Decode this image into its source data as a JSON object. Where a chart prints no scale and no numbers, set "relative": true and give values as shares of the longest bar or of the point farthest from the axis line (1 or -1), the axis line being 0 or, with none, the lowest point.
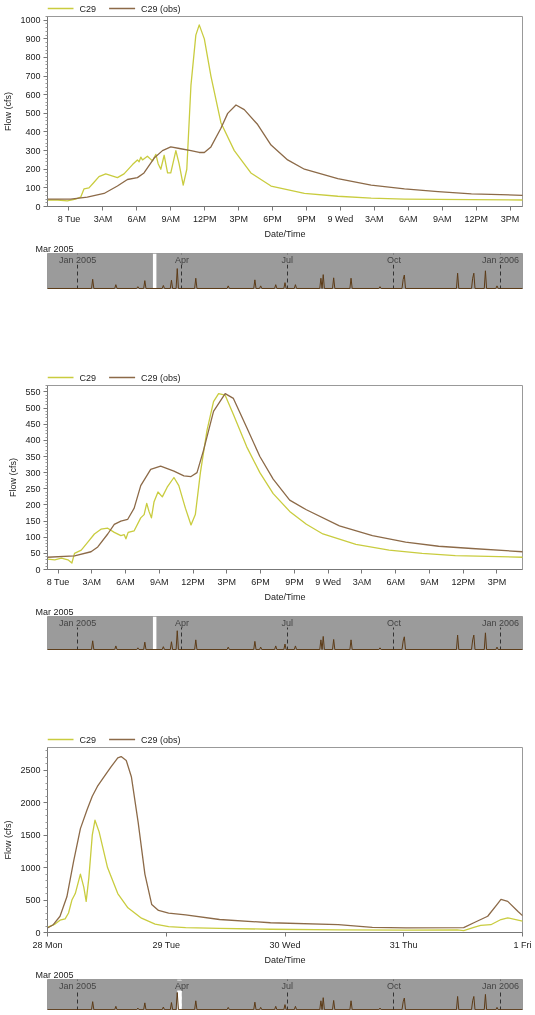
{
  "chart_data": [
    {
      "type": "line",
      "xlabel": "Date/Time",
      "ylabel": "Flow (cfs)",
      "annotations": [
        "Mar 2005"
      ],
      "legend": "top left",
      "grid": false,
      "xlim": [
        "2005-03-07T22:06",
        "2005-03-09T16:06"
      ],
      "ylim": [
        0,
        1020
      ],
      "yticks": [
        0,
        100,
        200,
        300,
        400,
        500,
        600,
        700,
        800,
        900,
        1000
      ],
      "xticks": [
        {
          "value": "2005-03-08T00:00",
          "label": "8 Tue"
        },
        {
          "value": "2005-03-08T03:00",
          "label": "3AM"
        },
        {
          "value": "2005-03-08T06:00",
          "label": "6AM"
        },
        {
          "value": "2005-03-08T09:00",
          "label": "9AM"
        },
        {
          "value": "2005-03-08T12:00",
          "label": "12PM"
        },
        {
          "value": "2005-03-08T15:00",
          "label": "3PM"
        },
        {
          "value": "2005-03-08T18:00",
          "label": "6PM"
        },
        {
          "value": "2005-03-08T21:00",
          "label": "9PM"
        },
        {
          "value": "2005-03-09T00:00",
          "label": "9 Wed"
        },
        {
          "value": "2005-03-09T03:00",
          "label": "3AM"
        },
        {
          "value": "2005-03-09T06:00",
          "label": "6AM"
        },
        {
          "value": "2005-03-09T09:00",
          "label": "9AM"
        },
        {
          "value": "2005-03-09T12:00",
          "label": "12PM"
        },
        {
          "value": "2005-03-09T15:00",
          "label": "3PM"
        }
      ],
      "series": [
        {
          "name": "C29",
          "color": "#c9cc3f",
          "x": [
            "2005-03-07T22:06",
            "2005-03-07T23:00",
            "2005-03-07T23:51",
            "2005-03-08T00:35",
            "2005-03-08T01:02",
            "2005-03-08T01:20",
            "2005-03-08T01:46",
            "2005-03-08T02:13",
            "2005-03-08T02:39",
            "2005-03-08T03:15",
            "2005-03-08T04:17",
            "2005-03-08T04:52",
            "2005-03-08T05:37",
            "2005-03-08T06:03",
            "2005-03-08T06:12",
            "2005-03-08T06:21",
            "2005-03-08T06:30",
            "2005-03-08T06:56",
            "2005-03-08T07:23",
            "2005-03-08T07:41",
            "2005-03-08T07:53",
            "2005-03-08T08:07",
            "2005-03-08T08:25",
            "2005-03-08T08:43",
            "2005-03-08T09:00",
            "2005-03-08T09:27",
            "2005-03-08T09:44",
            "2005-03-08T10:06",
            "2005-03-08T10:25",
            "2005-03-08T10:47",
            "2005-03-08T11:13",
            "2005-03-08T11:31",
            "2005-03-08T11:58",
            "2005-03-08T12:33",
            "2005-03-08T13:26",
            "2005-03-08T14:37",
            "2005-03-08T16:05",
            "2005-03-08T17:52",
            "2005-03-08T20:49",
            "2005-03-08T23:46",
            "2005-03-09T02:43",
            "2005-03-09T05:40",
            "2005-03-09T11:35",
            "2005-03-09T16:06"
          ],
          "values": [
            35,
            35,
            30,
            40,
            50,
            95,
            100,
            130,
            160,
            175,
            155,
            175,
            225,
            250,
            240,
            265,
            250,
            270,
            245,
            280,
            230,
            200,
            275,
            180,
            180,
            300,
            230,
            115,
            200,
            650,
            920,
            975,
            900,
            700,
            450,
            300,
            180,
            110,
            70,
            55,
            45,
            40,
            37,
            35
          ]
        },
        {
          "name": "C29 (obs)",
          "color": "#8c6a48",
          "x": [
            "2005-03-07T22:06",
            "2005-03-08T00:09",
            "2005-03-08T01:37",
            "2005-03-08T03:06",
            "2005-03-08T04:17",
            "2005-03-08T05:10",
            "2005-03-08T06:03",
            "2005-03-08T06:38",
            "2005-03-08T07:32",
            "2005-03-08T08:16",
            "2005-03-08T09:00",
            "2005-03-08T09:53",
            "2005-03-08T10:47",
            "2005-03-08T11:31",
            "2005-03-08T11:58",
            "2005-03-08T12:33",
            "2005-03-08T13:26",
            "2005-03-08T14:02",
            "2005-03-08T14:46",
            "2005-03-08T15:30",
            "2005-03-08T16:41",
            "2005-03-08T17:52",
            "2005-03-08T19:20",
            "2005-03-08T20:49",
            "2005-03-08T23:46",
            "2005-03-09T02:43",
            "2005-03-09T05:40",
            "2005-03-09T08:38",
            "2005-03-09T11:35",
            "2005-03-09T16:06"
          ],
          "values": [
            40,
            40,
            50,
            70,
            110,
            145,
            155,
            180,
            260,
            300,
            320,
            310,
            300,
            290,
            290,
            320,
            420,
            500,
            545,
            520,
            440,
            330,
            250,
            200,
            150,
            115,
            95,
            80,
            68,
            60
          ]
        }
      ]
    },
    {
      "type": "line",
      "relative": true,
      "tick_labels": "x",
      "grid": "x",
      "xlim": [
        "2004-12-06",
        "2006-01-20"
      ],
      "xticks": [
        {
          "value": "2005-01-01",
          "label": "Jan 2005"
        },
        {
          "value": "2005-04-01",
          "label": "Apr"
        },
        {
          "value": "2005-07-01",
          "label": "Jul"
        },
        {
          "value": "2005-10-01",
          "label": "Oct"
        },
        {
          "value": "2006-01-01",
          "label": "Jan 2006"
        }
      ],
      "bands": [
        {
          "axis": "x",
          "from": "2005-03-07",
          "to": "2005-03-10",
          "color": "#ffffff"
        }
      ],
      "series": [
        {
          "color": "#5c3b17",
          "x": [
            "2004-12-06",
            "2005-01-13",
            "2005-01-14",
            "2005-01-15",
            "2005-02-02",
            "2005-02-03",
            "2005-02-04",
            "2005-02-21",
            "2005-02-22",
            "2005-02-23",
            "2005-02-27",
            "2005-02-28",
            "2005-03-01",
            "2005-03-15",
            "2005-03-16",
            "2005-03-17",
            "2005-03-22",
            "2005-03-23",
            "2005-03-24",
            "2005-03-27",
            "2005-03-28",
            "2005-03-29",
            "2005-04-12",
            "2005-04-13",
            "2005-04-14",
            "2005-05-10",
            "2005-05-11",
            "2005-05-12",
            "2005-06-02",
            "2005-06-03",
            "2005-06-04",
            "2005-06-07",
            "2005-06-08",
            "2005-06-09",
            "2005-06-20",
            "2005-06-21",
            "2005-06-22",
            "2005-06-28",
            "2005-06-29",
            "2005-06-30",
            "2005-07-07",
            "2005-07-08",
            "2005-07-09",
            "2005-07-29",
            "2005-07-30",
            "2005-07-31",
            "2005-08-01",
            "2005-08-02",
            "2005-08-09",
            "2005-08-10",
            "2005-08-11",
            "2005-08-24",
            "2005-08-25",
            "2005-08-26",
            "2005-09-18",
            "2005-09-19",
            "2005-09-20",
            "2005-10-08",
            "2005-10-09",
            "2005-10-10",
            "2005-10-11",
            "2005-11-24",
            "2005-11-25",
            "2005-11-26",
            "2005-12-07",
            "2005-12-08",
            "2005-12-09",
            "2005-12-10",
            "2005-12-18",
            "2005-12-19",
            "2005-12-20",
            "2005-12-28",
            "2005-12-29",
            "2005-12-30",
            "2006-01-20"
          ],
          "values": [
            0.01,
            0.01,
            0.47,
            0.01,
            0.01,
            0.2,
            0.01,
            0.01,
            0.1,
            0.01,
            0.01,
            0.4,
            0.01,
            0.01,
            0.16,
            0.01,
            0.01,
            0.42,
            0.01,
            0.01,
            1,
            0.01,
            0.01,
            0.52,
            0.01,
            0.01,
            0.14,
            0.01,
            0.01,
            0.44,
            0.01,
            0.01,
            0.14,
            0.01,
            0.01,
            0.2,
            0.01,
            0.01,
            0.3,
            0.01,
            0.01,
            0.2,
            0.01,
            0.01,
            0.52,
            0.01,
            0.7,
            0.01,
            0.01,
            0.54,
            0.01,
            0.01,
            0.52,
            0.01,
            0.01,
            0.1,
            0.01,
            0.01,
            0.46,
            0.68,
            0.01,
            0.01,
            0.77,
            0.01,
            0.01,
            0.52,
            0.77,
            0.01,
            0.01,
            0.89,
            0.01,
            0.01,
            0.14,
            0.01,
            0.01
          ]
        }
      ]
    },
    {
      "type": "line",
      "xlabel": "Date/Time",
      "ylabel": "Flow (cfs)",
      "annotations": [
        "Mar 2005"
      ],
      "legend": "top left",
      "grid": false,
      "xlim": [
        "2005-03-07T23:04",
        "2005-03-09T17:16"
      ],
      "ylim": [
        0,
        570
      ],
      "yticks": [
        0,
        50,
        100,
        150,
        200,
        250,
        300,
        350,
        400,
        450,
        500,
        550
      ],
      "xticks": [
        {
          "value": "2005-03-08T00:00",
          "label": "8 Tue"
        },
        {
          "value": "2005-03-08T03:00",
          "label": "3AM"
        },
        {
          "value": "2005-03-08T06:00",
          "label": "6AM"
        },
        {
          "value": "2005-03-08T09:00",
          "label": "9AM"
        },
        {
          "value": "2005-03-08T12:00",
          "label": "12PM"
        },
        {
          "value": "2005-03-08T15:00",
          "label": "3PM"
        },
        {
          "value": "2005-03-08T18:00",
          "label": "6PM"
        },
        {
          "value": "2005-03-08T21:00",
          "label": "9PM"
        },
        {
          "value": "2005-03-09T00:00",
          "label": "9 Wed"
        },
        {
          "value": "2005-03-09T03:00",
          "label": "3AM"
        },
        {
          "value": "2005-03-09T06:00",
          "label": "6AM"
        },
        {
          "value": "2005-03-09T09:00",
          "label": "9AM"
        },
        {
          "value": "2005-03-09T12:00",
          "label": "12PM"
        },
        {
          "value": "2005-03-09T15:00",
          "label": "3PM"
        }
      ],
      "series": [
        {
          "name": "C29",
          "color": "#c9cc3f",
          "x": [
            "2005-03-07T23:04",
            "2005-03-07T23:43",
            "2005-03-08T00:18",
            "2005-03-08T00:53",
            "2005-03-08T01:14",
            "2005-03-08T01:28",
            "2005-03-08T02:04",
            "2005-03-08T02:39",
            "2005-03-08T03:14",
            "2005-03-08T03:49",
            "2005-03-08T04:25",
            "2005-03-08T05:00",
            "2005-03-08T05:35",
            "2005-03-08T05:53",
            "2005-03-08T06:02",
            "2005-03-08T06:14",
            "2005-03-08T06:46",
            "2005-03-08T07:21",
            "2005-03-08T07:39",
            "2005-03-08T07:53",
            "2005-03-08T08:05",
            "2005-03-08T08:18",
            "2005-03-08T08:32",
            "2005-03-08T08:53",
            "2005-03-08T09:16",
            "2005-03-08T09:42",
            "2005-03-08T10:18",
            "2005-03-08T10:44",
            "2005-03-08T11:19",
            "2005-03-08T11:49",
            "2005-03-08T12:12",
            "2005-03-08T12:39",
            "2005-03-08T13:14",
            "2005-03-08T13:49",
            "2005-03-08T14:16",
            "2005-03-08T14:51",
            "2005-03-08T15:35",
            "2005-03-08T16:46",
            "2005-03-08T17:56",
            "2005-03-08T19:07",
            "2005-03-08T20:35",
            "2005-03-08T22:04",
            "2005-03-08T23:32",
            "2005-03-09T02:28",
            "2005-03-09T05:25",
            "2005-03-09T08:21",
            "2005-03-09T11:18",
            "2005-03-09T17:16"
          ],
          "values": [
            32,
            30,
            35,
            30,
            20,
            50,
            60,
            85,
            110,
            125,
            128,
            115,
            105,
            108,
            95,
            115,
            120,
            160,
            170,
            205,
            180,
            160,
            210,
            240,
            225,
            255,
            285,
            260,
            190,
            138,
            170,
            300,
            430,
            520,
            545,
            540,
            480,
            380,
            300,
            235,
            180,
            140,
            110,
            78,
            60,
            50,
            43,
            38
          ]
        },
        {
          "name": "C29 (obs)",
          "color": "#8c6a48",
          "x": [
            "2005-03-07T23:04",
            "2005-03-08T01:28",
            "2005-03-08T02:56",
            "2005-03-08T03:32",
            "2005-03-08T04:25",
            "2005-03-08T05:00",
            "2005-03-08T05:35",
            "2005-03-08T06:11",
            "2005-03-08T06:46",
            "2005-03-08T07:21",
            "2005-03-08T08:14",
            "2005-03-08T09:07",
            "2005-03-08T10:18",
            "2005-03-08T11:11",
            "2005-03-08T11:49",
            "2005-03-08T12:21",
            "2005-03-08T12:56",
            "2005-03-08T13:49",
            "2005-03-08T14:51",
            "2005-03-08T15:35",
            "2005-03-08T16:46",
            "2005-03-08T17:56",
            "2005-03-08T19:07",
            "2005-03-08T20:35",
            "2005-03-08T22:04",
            "2005-03-09T01:00",
            "2005-03-09T03:56",
            "2005-03-09T06:53",
            "2005-03-09T09:49",
            "2005-03-09T12:46",
            "2005-03-09T17:16"
          ],
          "values": [
            38,
            42,
            55,
            70,
            110,
            140,
            150,
            155,
            190,
            260,
            310,
            320,
            305,
            290,
            288,
            300,
            370,
            490,
            545,
            530,
            440,
            350,
            280,
            215,
            185,
            135,
            105,
            85,
            72,
            65,
            55
          ]
        }
      ]
    },
    {
      "type": "line",
      "relative": true,
      "tick_labels": "x",
      "grid": "x",
      "xlim": [
        "2004-12-06",
        "2006-01-20"
      ],
      "xticks": [
        {
          "value": "2005-01-01",
          "label": "Jan 2005"
        },
        {
          "value": "2005-04-01",
          "label": "Apr"
        },
        {
          "value": "2005-07-01",
          "label": "Jul"
        },
        {
          "value": "2005-10-01",
          "label": "Oct"
        },
        {
          "value": "2006-01-01",
          "label": "Jan 2006"
        }
      ],
      "bands": [
        {
          "axis": "x",
          "from": "2005-03-07",
          "to": "2005-03-10",
          "color": "#ffffff"
        }
      ],
      "series": [
        {
          "color": "#5c3b17",
          "x": [
            "2004-12-06",
            "2005-01-13",
            "2005-01-14",
            "2005-01-15",
            "2005-02-02",
            "2005-02-03",
            "2005-02-04",
            "2005-02-21",
            "2005-02-22",
            "2005-02-23",
            "2005-02-27",
            "2005-02-28",
            "2005-03-01",
            "2005-03-15",
            "2005-03-16",
            "2005-03-17",
            "2005-03-22",
            "2005-03-23",
            "2005-03-24",
            "2005-03-27",
            "2005-03-28",
            "2005-03-29",
            "2005-04-12",
            "2005-04-13",
            "2005-04-14",
            "2005-05-10",
            "2005-05-11",
            "2005-05-12",
            "2005-06-02",
            "2005-06-03",
            "2005-06-04",
            "2005-06-07",
            "2005-06-08",
            "2005-06-09",
            "2005-06-20",
            "2005-06-21",
            "2005-06-22",
            "2005-06-28",
            "2005-06-29",
            "2005-06-30",
            "2005-07-07",
            "2005-07-08",
            "2005-07-09",
            "2005-07-29",
            "2005-07-30",
            "2005-07-31",
            "2005-08-01",
            "2005-08-02",
            "2005-08-09",
            "2005-08-10",
            "2005-08-11",
            "2005-08-24",
            "2005-08-25",
            "2005-08-26",
            "2005-09-18",
            "2005-09-19",
            "2005-09-20",
            "2005-10-08",
            "2005-10-09",
            "2005-10-10",
            "2005-10-11",
            "2005-11-24",
            "2005-11-25",
            "2005-11-26",
            "2005-12-07",
            "2005-12-08",
            "2005-12-09",
            "2005-12-10",
            "2005-12-18",
            "2005-12-19",
            "2005-12-20",
            "2005-12-28",
            "2005-12-29",
            "2005-12-30",
            "2006-01-20"
          ],
          "values": [
            0.01,
            0.01,
            0.47,
            0.01,
            0.01,
            0.2,
            0.01,
            0.01,
            0.1,
            0.01,
            0.01,
            0.4,
            0.01,
            0.01,
            0.16,
            0.01,
            0.01,
            0.42,
            0.01,
            0.01,
            1,
            0.01,
            0.01,
            0.52,
            0.01,
            0.01,
            0.14,
            0.01,
            0.01,
            0.44,
            0.01,
            0.01,
            0.14,
            0.01,
            0.01,
            0.2,
            0.01,
            0.01,
            0.3,
            0.01,
            0.01,
            0.2,
            0.01,
            0.01,
            0.52,
            0.01,
            0.7,
            0.01,
            0.01,
            0.54,
            0.01,
            0.01,
            0.52,
            0.01,
            0.01,
            0.1,
            0.01,
            0.01,
            0.46,
            0.68,
            0.01,
            0.01,
            0.77,
            0.01,
            0.01,
            0.52,
            0.77,
            0.01,
            0.01,
            0.89,
            0.01,
            0.01,
            0.14,
            0.01,
            0.01
          ]
        }
      ]
    },
    {
      "type": "line",
      "xlabel": "Date/Time",
      "ylabel": "Flow (cfs)",
      "annotations": [
        "Mar 2005"
      ],
      "legend": "top left",
      "grid": false,
      "xlim": [
        "2005-03-28T00:00",
        "2005-04-01T00:00"
      ],
      "ylim": [
        0,
        2850
      ],
      "yticks": [
        0,
        500,
        1000,
        1500,
        2000,
        2500
      ],
      "xticks": [
        {
          "value": "2005-03-28T00:00",
          "label": "28 Mon"
        },
        {
          "value": "2005-03-29T00:00",
          "label": "29 Tue"
        },
        {
          "value": "2005-03-30T00:00",
          "label": "30 Wed"
        },
        {
          "value": "2005-03-31T00:00",
          "label": "31 Thu"
        },
        {
          "value": "2005-04-01T00:00",
          "label": "1 Fri"
        }
      ],
      "series": [
        {
          "name": "C29",
          "color": "#c9cc3f",
          "x": [
            "2005-03-28T00:00",
            "2005-03-28T01:31",
            "2005-03-28T02:32",
            "2005-03-28T03:34",
            "2005-03-28T04:15",
            "2005-03-28T04:56",
            "2005-03-28T05:37",
            "2005-03-28T06:39",
            "2005-03-28T07:20",
            "2005-03-28T07:49",
            "2005-03-28T08:22",
            "2005-03-28T09:03",
            "2005-03-28T09:36",
            "2005-03-28T10:26",
            "2005-03-28T12:08",
            "2005-03-28T14:12",
            "2005-03-28T16:15",
            "2005-03-28T19:00",
            "2005-03-28T21:45",
            "2005-03-29T00:29",
            "2005-03-29T03:55",
            "2005-03-29T10:46",
            "2005-03-29T21:04",
            "2005-03-30T10:46",
            "2005-03-31T00:28",
            "2005-03-31T10:48",
            "2005-03-31T12:07",
            "2005-03-31T14:10",
            "2005-03-31T15:33",
            "2005-03-31T17:36",
            "2005-03-31T19:39",
            "2005-03-31T21:01",
            "2005-04-01T00:00"
          ],
          "values": [
            80,
            130,
            190,
            210,
            300,
            500,
            600,
            900,
            700,
            480,
            850,
            1500,
            1730,
            1550,
            1000,
            600,
            380,
            220,
            130,
            90,
            75,
            65,
            50,
            40,
            38,
            40,
            30,
            80,
            110,
            120,
            200,
            225,
            175
          ]
        },
        {
          "name": "C29 (obs)",
          "color": "#8c6a48",
          "x": [
            "2005-03-28T00:00",
            "2005-03-28T01:10",
            "2005-03-28T02:32",
            "2005-03-28T03:55",
            "2005-03-28T05:17",
            "2005-03-28T06:39",
            "2005-03-28T08:02",
            "2005-03-28T09:03",
            "2005-03-28T10:05",
            "2005-03-28T11:27",
            "2005-03-28T12:50",
            "2005-03-28T14:12",
            "2005-03-28T14:53",
            "2005-03-28T15:55",
            "2005-03-28T16:57",
            "2005-03-28T18:19",
            "2005-03-28T19:41",
            "2005-03-28T21:04",
            "2005-03-28T22:26",
            "2005-03-29T00:29",
            "2005-03-29T03:55",
            "2005-03-29T10:46",
            "2005-03-29T21:04",
            "2005-03-30T10:46",
            "2005-03-30T17:39",
            "2005-03-31T00:28",
            "2005-03-31T12:07",
            "2005-03-31T14:10",
            "2005-03-31T16:58",
            "2005-03-31T19:02",
            "2005-03-31T19:39",
            "2005-03-31T21:01",
            "2005-03-31T23:09",
            "2005-04-01T00:00"
          ],
          "values": [
            70,
            120,
            250,
            550,
            1100,
            1600,
            1900,
            2100,
            2250,
            2400,
            2550,
            2690,
            2710,
            2650,
            2400,
            1700,
            900,
            430,
            340,
            300,
            270,
            200,
            150,
            120,
            80,
            70,
            75,
            150,
            250,
            450,
            510,
            480,
            320,
            260
          ]
        }
      ]
    },
    {
      "type": "line",
      "relative": true,
      "tick_labels": "x",
      "grid": "x",
      "xlim": [
        "2004-12-06",
        "2006-01-20"
      ],
      "xticks": [
        {
          "value": "2005-01-01",
          "label": "Jan 2005"
        },
        {
          "value": "2005-04-01",
          "label": "Apr"
        },
        {
          "value": "2005-07-01",
          "label": "Jul"
        },
        {
          "value": "2005-10-01",
          "label": "Oct"
        },
        {
          "value": "2006-01-01",
          "label": "Jan 2006"
        }
      ],
      "bands": [
        {
          "axis": "x",
          "from": "2005-03-28",
          "to": "2005-04-01",
          "color": "#ffffff"
        }
      ],
      "series": [
        {
          "color": "#5c3b17",
          "x": [
            "2004-12-06",
            "2005-01-13",
            "2005-01-14",
            "2005-01-15",
            "2005-02-02",
            "2005-02-03",
            "2005-02-04",
            "2005-02-21",
            "2005-02-22",
            "2005-02-23",
            "2005-02-27",
            "2005-02-28",
            "2005-03-01",
            "2005-03-15",
            "2005-03-16",
            "2005-03-17",
            "2005-03-22",
            "2005-03-23",
            "2005-03-24",
            "2005-03-27",
            "2005-03-28",
            "2005-03-29",
            "2005-04-12",
            "2005-04-13",
            "2005-04-14",
            "2005-05-10",
            "2005-05-11",
            "2005-05-12",
            "2005-06-02",
            "2005-06-03",
            "2005-06-04",
            "2005-06-07",
            "2005-06-08",
            "2005-06-09",
            "2005-06-20",
            "2005-06-21",
            "2005-06-22",
            "2005-06-28",
            "2005-06-29",
            "2005-06-30",
            "2005-07-07",
            "2005-07-08",
            "2005-07-09",
            "2005-07-29",
            "2005-07-30",
            "2005-07-31",
            "2005-08-01",
            "2005-08-02",
            "2005-08-09",
            "2005-08-10",
            "2005-08-11",
            "2005-08-24",
            "2005-08-25",
            "2005-08-26",
            "2005-09-18",
            "2005-09-19",
            "2005-09-20",
            "2005-10-08",
            "2005-10-09",
            "2005-10-10",
            "2005-10-11",
            "2005-11-24",
            "2005-11-25",
            "2005-11-26",
            "2005-12-07",
            "2005-12-08",
            "2005-12-09",
            "2005-12-10",
            "2005-12-18",
            "2005-12-19",
            "2005-12-20",
            "2005-12-28",
            "2005-12-29",
            "2005-12-30",
            "2006-01-20"
          ],
          "values": [
            0.01,
            0.01,
            0.47,
            0.01,
            0.01,
            0.2,
            0.01,
            0.01,
            0.1,
            0.01,
            0.01,
            0.4,
            0.01,
            0.01,
            0.16,
            0.01,
            0.01,
            0.42,
            0.01,
            0.01,
            1,
            0.01,
            0.01,
            0.52,
            0.01,
            0.01,
            0.14,
            0.01,
            0.01,
            0.44,
            0.01,
            0.01,
            0.14,
            0.01,
            0.01,
            0.2,
            0.01,
            0.01,
            0.3,
            0.01,
            0.01,
            0.2,
            0.01,
            0.01,
            0.52,
            0.01,
            0.7,
            0.01,
            0.01,
            0.54,
            0.01,
            0.01,
            0.52,
            0.01,
            0.01,
            0.1,
            0.01,
            0.01,
            0.46,
            0.68,
            0.01,
            0.01,
            0.77,
            0.01,
            0.01,
            0.52,
            0.77,
            0.01,
            0.01,
            0.89,
            0.01,
            0.01,
            0.14,
            0.01,
            0.01
          ]
        }
      ]
    }
  ]
}
